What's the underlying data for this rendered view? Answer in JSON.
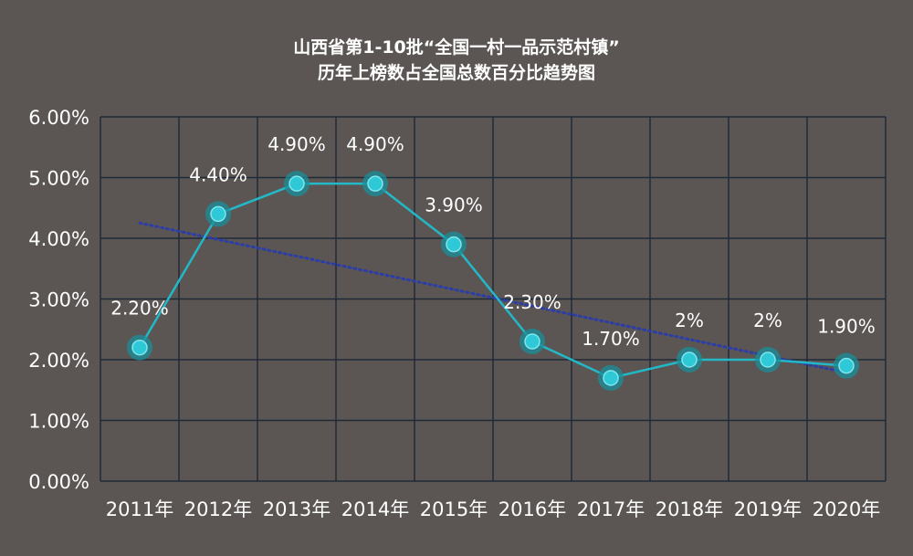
{
  "chart_data": {
    "type": "line",
    "title": "山西省第1-10批“全国一村一品示范村镇”",
    "subtitle": "历年上榜数占全国总数百分比趋势图",
    "categories": [
      "2011年",
      "2012年",
      "2013年",
      "2014年",
      "2015年",
      "2016年",
      "2017年",
      "2018年",
      "2019年",
      "2020年"
    ],
    "series": [
      {
        "values": [
          2.2,
          4.4,
          4.9,
          4.9,
          3.9,
          2.3,
          1.7,
          2.0,
          2.0,
          1.9
        ]
      }
    ],
    "data_labels": [
      "2.20%",
      "4.40%",
      "4.90%",
      "4.90%",
      "3.90%",
      "2.30%",
      "1.70%",
      "2%",
      "2%",
      "1.90%"
    ],
    "trendline": {
      "type": "linear",
      "style": "dotted"
    },
    "y_ticks": [
      "0.00%",
      "1.00%",
      "2.00%",
      "3.00%",
      "4.00%",
      "5.00%",
      "6.00%"
    ],
    "ylim": [
      0,
      6
    ],
    "xlabel": "",
    "ylabel": "",
    "grid": true,
    "legend": "none",
    "colors": {
      "background": "#5b5653",
      "grid": "#1f2a38",
      "line": "#22b8c8",
      "marker": "#2ec8d6",
      "marker_glow": "#1a8f9a",
      "trend": "#2b3da8",
      "text": "#ffffff"
    }
  }
}
